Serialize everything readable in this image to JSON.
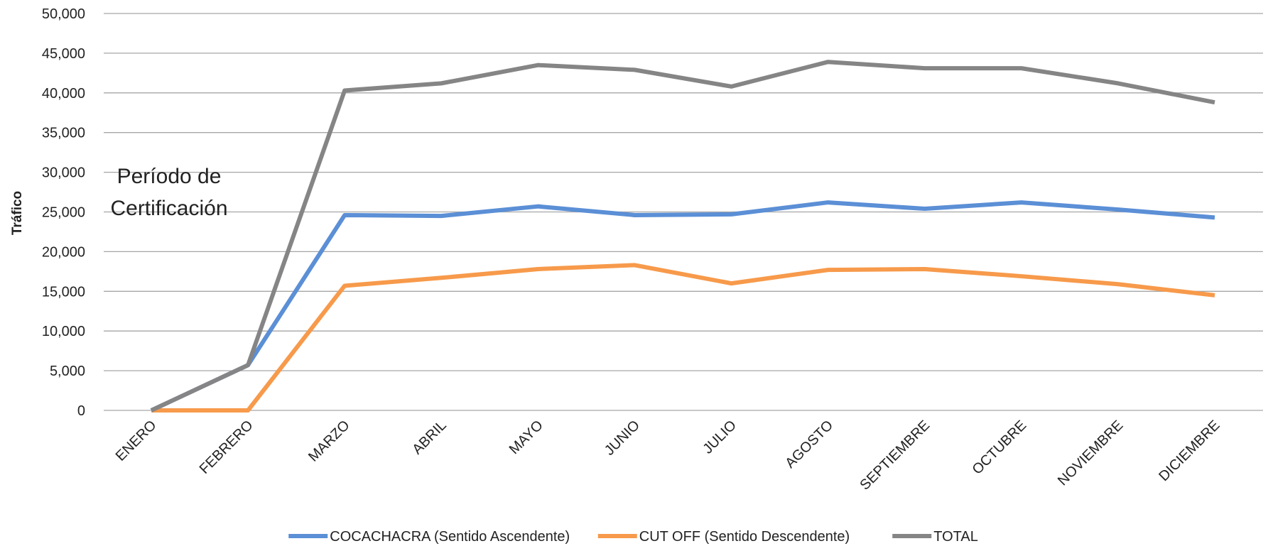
{
  "chart_data": {
    "type": "line",
    "y_label": "Tráfico",
    "annotation": "Período de Certificación",
    "categories": [
      "ENERO",
      "FEBRERO",
      "MARZO",
      "ABRIL",
      "MAYO",
      "JUNIO",
      "JULIO",
      "AGOSTO",
      "SEPTIEMBRE",
      "OCTUBRE",
      "NOVIEMBRE",
      "DICIEMBRE"
    ],
    "series": [
      {
        "name": "COCACHACRA (Sentido Ascendente)",
        "color": "#5b8fd6",
        "values": [
          0,
          5700,
          24600,
          24500,
          25700,
          24600,
          24700,
          26200,
          25400,
          26200,
          25300,
          24300
        ]
      },
      {
        "name": "CUT OFF (Sentido Descendente)",
        "color": "#f79a4b",
        "values": [
          0,
          0,
          15700,
          16700,
          17800,
          18300,
          16000,
          17700,
          17800,
          16900,
          15900,
          14500
        ]
      },
      {
        "name": "TOTAL",
        "color": "#858585",
        "values": [
          0,
          5700,
          40300,
          41200,
          43500,
          42900,
          40800,
          43900,
          43100,
          43100,
          41200,
          38800
        ]
      }
    ],
    "ylim": [
      0,
      50000
    ],
    "yticks": [
      0,
      {
        "value": 5000,
        "label": "5,000"
      },
      {
        "value": 10000,
        "label": "10,000"
      },
      {
        "value": 15000,
        "label": "15,000"
      },
      {
        "value": 20000,
        "label": "20,000"
      },
      {
        "value": 25000,
        "label": "25,000"
      },
      {
        "value": 30000,
        "label": "30,000"
      },
      {
        "value": 35000,
        "label": "35,000"
      },
      {
        "value": 40000,
        "label": "40,000"
      },
      {
        "value": 45000,
        "label": "45,000"
      },
      {
        "value": 50000,
        "label": "50,000"
      }
    ],
    "grid": true,
    "legend": "bottom"
  }
}
